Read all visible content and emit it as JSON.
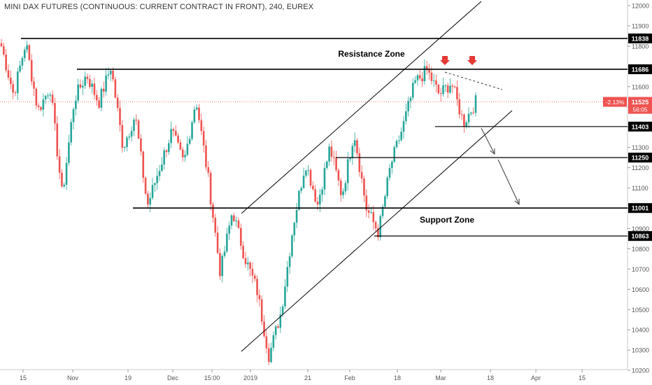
{
  "header": {
    "title": "MINI DAX FUTURES (CONTINUOUS: CURRENT CONTRACT IN FRONT), 240, EUREX"
  },
  "colors": {
    "up": "#26a69a",
    "down": "#ef5350",
    "line": "#000000",
    "arrow_red": "#e53935",
    "arrow_gray": "#555555",
    "price_tag": "#ef5350"
  },
  "chart_data": {
    "type": "candlestick",
    "title": "MINI DAX FUTURES (CONTINUOUS: CURRENT CONTRACT IN FRONT), 240, EUREX",
    "ylim": [
      10180,
      12040
    ],
    "y_ticks": [
      12000,
      11900,
      11800,
      11700,
      11600,
      11500,
      11400,
      11300,
      11200,
      11100,
      11000,
      10900,
      10800,
      10700,
      10600,
      10500,
      10400,
      10300,
      10200
    ],
    "x_ticks": [
      "15",
      "Nov",
      "19",
      "Dec",
      "15:00",
      "2019",
      "21",
      "Feb",
      "18",
      "Mar",
      "18",
      "Apr",
      "15"
    ],
    "levels": [
      {
        "label": "11838",
        "value": 11838
      },
      {
        "label": "11686",
        "value": 11686
      },
      {
        "label": "11403",
        "value": 11403
      },
      {
        "label": "11250",
        "value": 11250
      },
      {
        "label": "11001",
        "value": 11001
      },
      {
        "label": "10863",
        "value": 10863
      }
    ],
    "current_price": {
      "value": 11525,
      "label": "11525",
      "change": "-2.13%",
      "countdown": "56:05"
    },
    "annotations": [
      "Resistance Zone",
      "Support Zone"
    ],
    "price_path": [
      11800,
      11560,
      11820,
      11480,
      11600,
      11060,
      11540,
      11660,
      11520,
      11700,
      11300,
      11460,
      11010,
      11200,
      11380,
      11220,
      11540,
      11150,
      10680,
      10990,
      10760,
      10600,
      10270,
      10490,
      10920,
      11230,
      11020,
      11300,
      11060,
      11380,
      11000,
      10880,
      11210,
      11400,
      11620,
      11680,
      11560,
      11620,
      11420,
      11525
    ]
  }
}
